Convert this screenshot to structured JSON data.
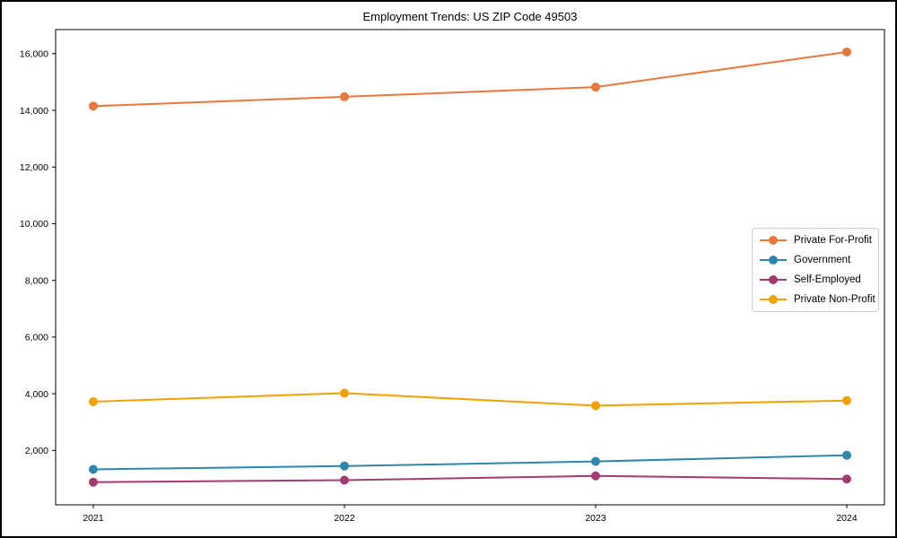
{
  "chart_data": {
    "type": "line",
    "title": "Employment Trends: US ZIP Code 49503",
    "x": [
      2021,
      2022,
      2023,
      2024
    ],
    "x_tick_labels": [
      "2021",
      "2022",
      "2023",
      "2024"
    ],
    "series": [
      {
        "name": "Private For-Profit",
        "color": "#E8793E",
        "marker": "circle",
        "values": [
          14150,
          14480,
          14820,
          16060
        ]
      },
      {
        "name": "Government",
        "color": "#2E86AB",
        "marker": "circle",
        "values": [
          1330,
          1450,
          1610,
          1830
        ]
      },
      {
        "name": "Self-Employed",
        "color": "#A23B72",
        "marker": "circle",
        "values": [
          880,
          950,
          1100,
          990
        ]
      },
      {
        "name": "Private Non-Profit",
        "color": "#F2A104",
        "marker": "circle",
        "values": [
          3720,
          4020,
          3580,
          3760
        ]
      }
    ],
    "yticks": [
      2000,
      4000,
      6000,
      8000,
      10000,
      12000,
      14000,
      16000
    ],
    "ytick_labels": [
      "2,000",
      "4,000",
      "6,000",
      "8,000",
      "10,000",
      "12,000",
      "14,000",
      "16,000"
    ],
    "ylim": [
      80,
      16850
    ],
    "xlim": [
      2020.85,
      2024.15
    ],
    "xlabel": "",
    "ylabel": "",
    "grid": false,
    "legend": {
      "position": "center-right",
      "entries": [
        "Private For-Profit",
        "Government",
        "Self-Employed",
        "Private Non-Profit"
      ]
    }
  }
}
